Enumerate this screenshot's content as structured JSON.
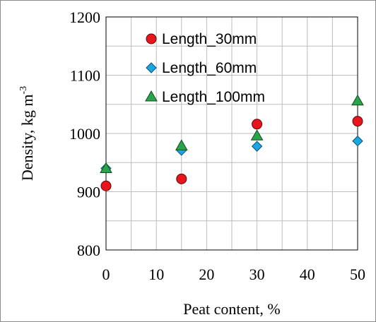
{
  "chart_data": {
    "type": "scatter",
    "xlabel": "Peat content, %",
    "ylabel_main": "Density,  kg m",
    "ylabel_sup": "-3",
    "xlim": [
      0,
      50
    ],
    "ylim": [
      800,
      1200
    ],
    "xticks": [
      0,
      10,
      20,
      30,
      40,
      50
    ],
    "yticks": [
      800,
      900,
      1000,
      1100,
      1200
    ],
    "grid": true,
    "legend_position": "top-left",
    "series": [
      {
        "name": "Length_30mm",
        "marker": "circle",
        "color": "#e8161c",
        "points": [
          {
            "x": 0,
            "y": 910
          },
          {
            "x": 15,
            "y": 922
          },
          {
            "x": 30,
            "y": 1016
          },
          {
            "x": 50,
            "y": 1021
          }
        ]
      },
      {
        "name": "Length_60mm",
        "marker": "diamond",
        "color": "#19a7e2",
        "points": [
          {
            "x": 0,
            "y": 940
          },
          {
            "x": 15,
            "y": 971
          },
          {
            "x": 30,
            "y": 978
          },
          {
            "x": 50,
            "y": 987
          }
        ]
      },
      {
        "name": "Length_100mm",
        "marker": "triangle",
        "color": "#2aa34a",
        "points": [
          {
            "x": 0,
            "y": 940
          },
          {
            "x": 15,
            "y": 979
          },
          {
            "x": 30,
            "y": 996
          },
          {
            "x": 50,
            "y": 1056
          }
        ]
      }
    ]
  }
}
